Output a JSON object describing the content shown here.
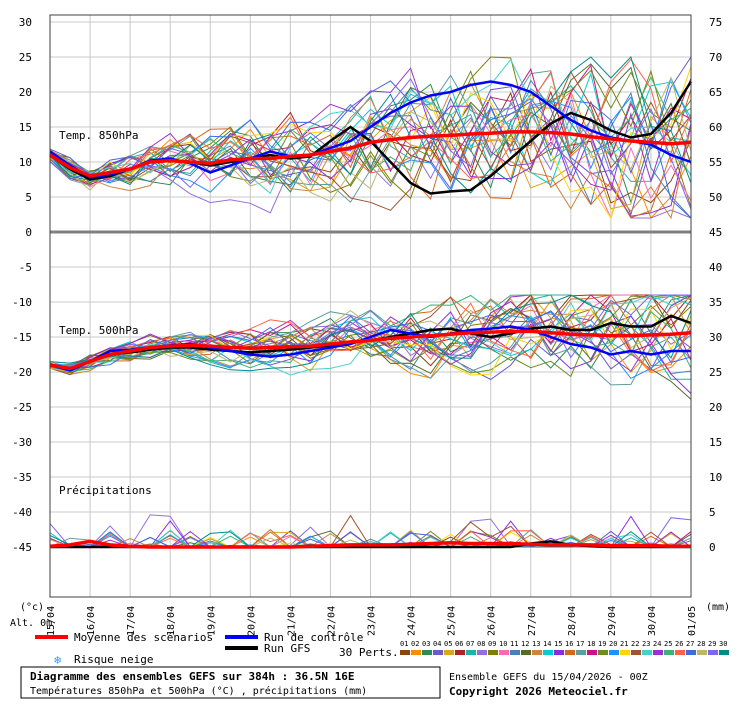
{
  "chart_data": {
    "type": "line",
    "x_tick_labels": [
      "15/04",
      "16/04",
      "17/04",
      "18/04",
      "19/04",
      "20/04",
      "21/04",
      "22/04",
      "23/04",
      "24/04",
      "25/04",
      "26/04",
      "27/04",
      "28/04",
      "29/04",
      "30/04",
      "01/05"
    ],
    "left_axis_ticks": [
      30,
      25,
      20,
      15,
      10,
      5,
      0,
      -5,
      -10,
      -15,
      -20,
      -25,
      -30,
      -35,
      -40,
      -45
    ],
    "right_axis_ticks": [
      75,
      70,
      65,
      60,
      55,
      50,
      45,
      40,
      35,
      30,
      25,
      20,
      15,
      10,
      5,
      0
    ],
    "left_unit": "(°c)",
    "right_unit": "(mm)",
    "alt_label": "Alt. 0m",
    "panels": {
      "t850": {
        "label": "Temp. 850hPa",
        "ylim": [
          0,
          30
        ]
      },
      "t500": {
        "label": "Temp. 500hPa",
        "ylim": [
          -30,
          0
        ]
      },
      "precip": {
        "label": "Précipitations",
        "ylim": [
          0,
          15
        ]
      }
    },
    "series": [
      {
        "name": "Moyenne des scénarios",
        "color": "#ff0000",
        "t850": [
          11,
          9.2,
          8,
          8.5,
          9,
          10,
          10.2,
          10,
          9.8,
          10.3,
          10.5,
          10.5,
          10.8,
          11,
          11.5,
          12,
          12.8,
          13.2,
          13.5,
          13.7,
          13.8,
          14,
          14.1,
          14.3,
          14.3,
          14.2,
          14,
          13.6,
          13.3,
          13,
          12.8,
          12.6,
          12.8
        ],
        "t500": [
          -19,
          -19.5,
          -18.5,
          -17.5,
          -17,
          -16.5,
          -16.3,
          -16.2,
          -16.3,
          -16.5,
          -16.6,
          -16.5,
          -16.4,
          -16.3,
          -16,
          -15.7,
          -15.5,
          -15.2,
          -15,
          -14.8,
          -14.6,
          -14.4,
          -14.3,
          -14.2,
          -14.2,
          -14.4,
          -14.6,
          -14.7,
          -14.8,
          -14.8,
          -14.7,
          -14.6,
          -14.4
        ],
        "precip": [
          0.1,
          0.3,
          0.8,
          0.3,
          0.1,
          0,
          0,
          0,
          0,
          0,
          0,
          0,
          0,
          0.1,
          0.2,
          0.3,
          0.3,
          0.3,
          0.4,
          0.5,
          0.6,
          0.5,
          0.5,
          0.5,
          0.4,
          0.3,
          0.3,
          0.3,
          0.2,
          0.2,
          0.2,
          0.1,
          0.1
        ]
      },
      {
        "name": "Run de contrôle",
        "color": "#0000ff",
        "t850": [
          11.5,
          9.5,
          7.8,
          8.2,
          9,
          10.2,
          10.5,
          9.8,
          8.5,
          9.5,
          10.5,
          11.5,
          10.8,
          11,
          12,
          13,
          15,
          17,
          18.5,
          19.5,
          20,
          21,
          21.5,
          21,
          20,
          18,
          16,
          14.5,
          13.5,
          13,
          12.5,
          11,
          10
        ],
        "t500": [
          -19,
          -19.8,
          -18.5,
          -17,
          -16.8,
          -16.5,
          -16.2,
          -16,
          -16.5,
          -17,
          -17.5,
          -17.8,
          -17.5,
          -17,
          -16.5,
          -16,
          -15,
          -14,
          -14.5,
          -15,
          -14.5,
          -14,
          -13.8,
          -13.5,
          -14,
          -15,
          -16,
          -16.5,
          -17.5,
          -17,
          -17.5,
          -17,
          -17
        ]
      },
      {
        "name": "Run GFS",
        "color": "#000000",
        "t850": [
          11,
          9,
          7.5,
          8,
          9,
          10,
          10.2,
          10,
          9.5,
          10,
          10.5,
          11,
          10.5,
          10.8,
          13,
          15,
          13,
          10,
          7,
          5.5,
          5.8,
          6,
          8,
          10.5,
          13,
          15.5,
          17,
          16,
          14.5,
          13.5,
          14,
          17,
          21.5
        ],
        "t500": [
          -19,
          -19.5,
          -18.5,
          -17.5,
          -17.2,
          -16.8,
          -16.5,
          -16.5,
          -16.8,
          -17,
          -17.2,
          -17,
          -16.8,
          -16.5,
          -16.2,
          -15.8,
          -15.5,
          -15,
          -14.5,
          -14,
          -13.8,
          -14.5,
          -15,
          -14.5,
          -13.8,
          -13.5,
          -14,
          -14,
          -13,
          -13.5,
          -13.5,
          -12,
          -13
        ],
        "precip": [
          0,
          0,
          0,
          0,
          0,
          0,
          0,
          0,
          0,
          0,
          0,
          0,
          0,
          0,
          0,
          0,
          0,
          0,
          0,
          0,
          0,
          0,
          0,
          0,
          0.5,
          0.8,
          0.3,
          0.1,
          0,
          0,
          0,
          0,
          0
        ]
      }
    ],
    "perturbations": {
      "label": "30 Perts.",
      "ids": [
        "01",
        "02",
        "03",
        "04",
        "05",
        "06",
        "07",
        "08",
        "09",
        "10",
        "11",
        "12",
        "13",
        "14",
        "15",
        "16",
        "17",
        "18",
        "19",
        "20",
        "21",
        "22",
        "23",
        "24",
        "25",
        "26",
        "27",
        "28",
        "29",
        "30"
      ],
      "colors": [
        "#8b4513",
        "#ff8c00",
        "#2e8b57",
        "#6a5acd",
        "#daa520",
        "#b22222",
        "#20b2aa",
        "#9370db",
        "#808000",
        "#ff69b4",
        "#4682b4",
        "#556b2f",
        "#cd853f",
        "#00ced1",
        "#8a2be2",
        "#d2691e",
        "#5f9ea0",
        "#c71585",
        "#6b8e23",
        "#1e90ff",
        "#ffd700",
        "#a0522d",
        "#48d1cc",
        "#9932cc",
        "#3cb371",
        "#ff6347",
        "#4169e1",
        "#bdb76b",
        "#7b68ee",
        "#008b8b"
      ]
    }
  },
  "legend": {
    "mean_label": "Moyenne des scénarios",
    "control_label": "Run de contrôle",
    "gfs_label": "Run GFS",
    "snow_label": "Risque neige",
    "snow_icon": "snowflake-icon"
  },
  "footer": {
    "title": "Diagramme des ensembles GEFS sur 384h : 36.5N 16E",
    "subtitle": "Températures 850hPa et 500hPa (°C) , précipitations (mm)",
    "run_info": "Ensemble GEFS du 15/04/2026 - 00Z",
    "copyright": "Copyright 2026 Meteociel.fr"
  }
}
